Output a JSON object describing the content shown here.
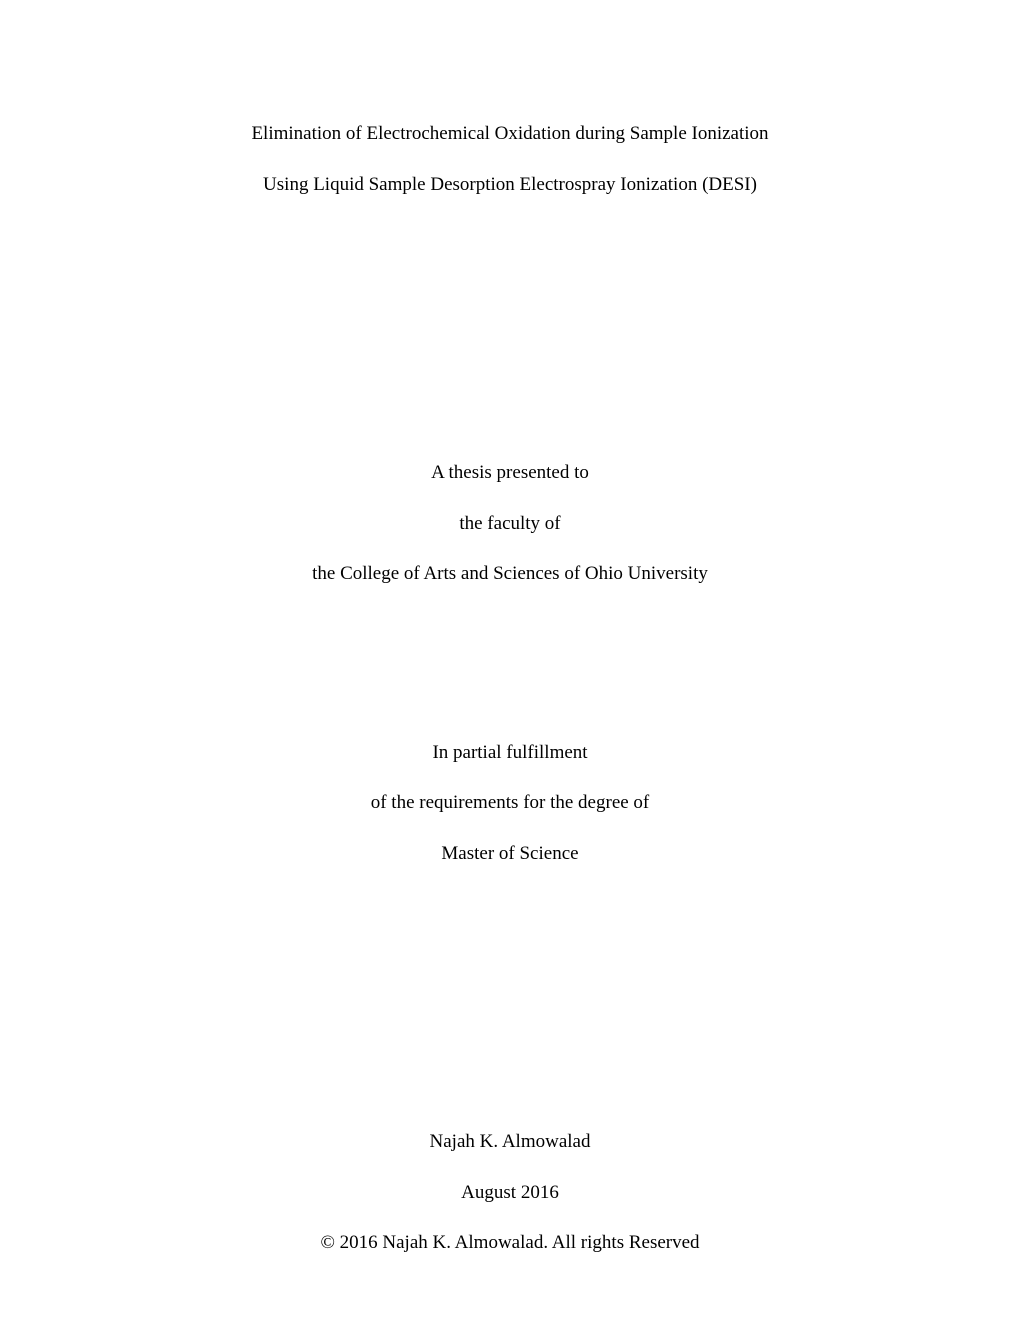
{
  "title": {
    "line1": "Elimination of Electrochemical Oxidation during Sample Ionization",
    "line2": "Using Liquid Sample Desorption Electrospray Ionization (DESI)"
  },
  "presented": {
    "line1": "A thesis presented to",
    "line2": "the faculty of",
    "line3": "the College of Arts and Sciences of Ohio University"
  },
  "fulfillment": {
    "line1": "In partial fulfillment",
    "line2": "of the requirements for the degree of",
    "line3": "Master of Science"
  },
  "author": {
    "name": "Najah K. Almowalad",
    "date": "August 2016",
    "copyright": "© 2016 Najah K. Almowalad. All rights Reserved"
  }
}
